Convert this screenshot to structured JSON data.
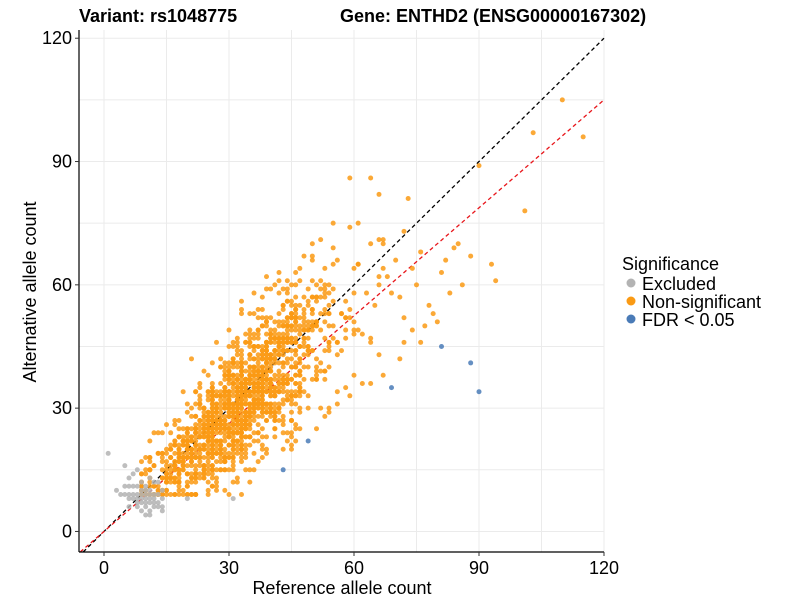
{
  "chart_data": {
    "type": "scatter",
    "title_left": "Variant: rs1048775",
    "title_right": "Gene: ENTHD2 (ENSG00000167302)",
    "xlabel": "Reference allele count",
    "ylabel": "Alternative allele count",
    "xlim": [
      -6,
      120
    ],
    "ylim": [
      -5,
      122
    ],
    "xticks": [
      0,
      30,
      60,
      90,
      120
    ],
    "yticks": [
      0,
      30,
      60,
      90,
      120
    ],
    "grid": true,
    "reference_lines": [
      {
        "name": "identity",
        "slope": 1.0,
        "intercept": 0,
        "color": "#000000",
        "style": "dashed"
      },
      {
        "name": "fitted",
        "slope": 0.875,
        "intercept": 0,
        "color": "#e8161b",
        "style": "dashed"
      }
    ],
    "legend": {
      "title": "Significance",
      "position": "right",
      "entries": [
        {
          "label": "Excluded",
          "color": "#b3b3b3"
        },
        {
          "label": "Non-significant",
          "color": "#fa9a14"
        },
        {
          "label": "FDR < 0.05",
          "color": "#4a7bb7"
        }
      ]
    },
    "series": [
      {
        "name": "Excluded",
        "color": "#b3b3b3",
        "points": [
          [
            1,
            19
          ],
          [
            5,
            16
          ],
          [
            6,
            13
          ],
          [
            7,
            14
          ],
          [
            8,
            15
          ],
          [
            9,
            12
          ],
          [
            10,
            11
          ],
          [
            11,
            13
          ],
          [
            12,
            12
          ],
          [
            5,
            11
          ],
          [
            6,
            11
          ],
          [
            7,
            11
          ],
          [
            8,
            11
          ],
          [
            9,
            10
          ],
          [
            10,
            10
          ],
          [
            11,
            10
          ],
          [
            4,
            9
          ],
          [
            5,
            9
          ],
          [
            6,
            9
          ],
          [
            7,
            9
          ],
          [
            8,
            9
          ],
          [
            9,
            9
          ],
          [
            10,
            9
          ],
          [
            11,
            9
          ],
          [
            12,
            9
          ],
          [
            6,
            8
          ],
          [
            7,
            8
          ],
          [
            8,
            8
          ],
          [
            9,
            8
          ],
          [
            10,
            8
          ],
          [
            11,
            8
          ],
          [
            12,
            8
          ],
          [
            8,
            7
          ],
          [
            9,
            7
          ],
          [
            10,
            7
          ],
          [
            11,
            7
          ],
          [
            12,
            7
          ],
          [
            13,
            7
          ],
          [
            6,
            6
          ],
          [
            8,
            6
          ],
          [
            10,
            6
          ],
          [
            12,
            6
          ],
          [
            13,
            6
          ],
          [
            14,
            6
          ],
          [
            9,
            5
          ],
          [
            11,
            5
          ],
          [
            14,
            5
          ],
          [
            10,
            4
          ],
          [
            11,
            4
          ],
          [
            14,
            8
          ],
          [
            13,
            9
          ],
          [
            20,
            8
          ],
          [
            31,
            8
          ],
          [
            14,
            10
          ],
          [
            13,
            12
          ],
          [
            3,
            10
          ]
        ]
      },
      {
        "name": "FDR < 0.05",
        "color": "#4a7bb7",
        "points": [
          [
            43,
            15
          ],
          [
            49,
            22
          ],
          [
            69,
            35
          ],
          [
            81,
            45
          ],
          [
            88,
            41
          ],
          [
            90,
            34
          ]
        ]
      },
      {
        "name": "Non-significant",
        "color": "#fa9a14",
        "generator": {
          "count": 1500,
          "x_range": [
            9,
            74
          ],
          "ratio": 0.95
        },
        "points": [
          [
            110,
            105
          ],
          [
            103,
            97
          ],
          [
            115,
            96
          ],
          [
            90,
            89
          ],
          [
            101,
            78
          ],
          [
            94,
            61
          ],
          [
            93,
            65
          ],
          [
            81,
            63
          ],
          [
            86,
            60
          ],
          [
            66,
            82
          ],
          [
            72,
            73
          ],
          [
            73,
            81
          ],
          [
            82,
            66
          ],
          [
            84,
            69
          ],
          [
            88,
            67
          ],
          [
            75,
            60
          ],
          [
            78,
            55
          ],
          [
            80,
            51
          ],
          [
            76,
            46
          ],
          [
            79,
            53
          ],
          [
            71,
            57
          ],
          [
            68,
            62
          ],
          [
            70,
            66
          ],
          [
            74,
            64
          ],
          [
            83,
            58
          ],
          [
            85,
            70
          ],
          [
            64,
            70
          ],
          [
            67,
            71
          ],
          [
            69,
            58
          ],
          [
            72,
            52
          ],
          [
            77,
            50
          ],
          [
            76,
            68
          ],
          [
            63,
            58
          ],
          [
            61,
            65
          ],
          [
            65,
            55
          ],
          [
            62,
            48
          ],
          [
            66,
            43
          ],
          [
            60,
            38
          ],
          [
            58,
            35
          ],
          [
            56,
            34
          ],
          [
            54,
            40
          ],
          [
            52,
            30
          ],
          [
            47,
            25
          ],
          [
            45,
            23
          ],
          [
            39,
            20
          ],
          [
            33,
            18
          ],
          [
            29,
            15
          ],
          [
            24,
            16
          ],
          [
            26,
            13
          ],
          [
            22,
            14
          ],
          [
            17,
            12
          ],
          [
            19,
            10
          ],
          [
            14,
            13
          ],
          [
            15,
            15
          ],
          [
            20,
            24
          ],
          [
            18,
            27
          ],
          [
            22,
            31
          ],
          [
            25,
            38
          ],
          [
            21,
            42
          ],
          [
            30,
            49
          ],
          [
            27,
            46
          ],
          [
            33,
            56
          ],
          [
            36,
            58
          ],
          [
            40,
            59
          ],
          [
            42,
            63
          ],
          [
            48,
            67
          ],
          [
            44,
            61
          ],
          [
            50,
            66
          ],
          [
            46,
            54
          ],
          [
            38,
            52
          ],
          [
            35,
            48
          ],
          [
            31,
            45
          ],
          [
            28,
            42
          ],
          [
            64,
            36
          ],
          [
            67,
            38
          ],
          [
            71,
            42
          ],
          [
            72,
            46
          ],
          [
            74,
            49
          ],
          [
            45,
            21
          ],
          [
            53,
            28
          ],
          [
            56,
            31
          ],
          [
            59,
            33
          ],
          [
            62,
            36
          ]
        ]
      }
    ]
  }
}
